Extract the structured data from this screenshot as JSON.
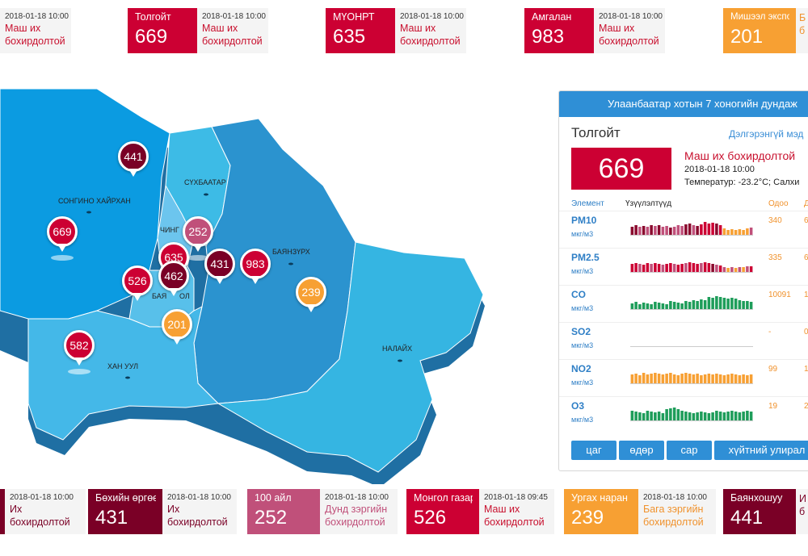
{
  "colors": {
    "red": "#cc0033",
    "dark": "#7a0026",
    "pink": "#c0507a",
    "orange": "#f7a033",
    "blue_header": "#2f8fd6"
  },
  "top_cards": [
    {
      "name": "",
      "value": "",
      "date": "2018-01-18 10:00",
      "level_line1": "Маш их",
      "level_line2": "бохирдолтой",
      "color": "red"
    },
    {
      "name": "Толгойт",
      "value": "669",
      "date": "2018-01-18 10:00",
      "level_line1": "Маш их",
      "level_line2": "бохирдолтой",
      "color": "red"
    },
    {
      "name": "МҮОНРТ",
      "value": "635",
      "date": "2018-01-18 10:00",
      "level_line1": "Маш их",
      "level_line2": "бохирдолтой",
      "color": "red"
    },
    {
      "name": "Амгалан",
      "value": "983",
      "date": "2018-01-18 10:00",
      "level_line1": "Маш их",
      "level_line2": "бохирдолтой",
      "color": "red"
    },
    {
      "name": "Мишээл экспо",
      "value": "201",
      "date": "",
      "level_line1": "Б",
      "level_line2": "б",
      "color": "orange"
    }
  ],
  "bottom_cards": [
    {
      "name": "",
      "value": "",
      "date": "2018-01-18 10:00",
      "level_line1": "Их",
      "level_line2": "бохирдолтой",
      "color": "dark"
    },
    {
      "name": "Бөхийн өргөө",
      "value": "431",
      "date": "2018-01-18 10:00",
      "level_line1": "Их",
      "level_line2": "бохирдолтой",
      "color": "dark"
    },
    {
      "name": "100 айл",
      "value": "252",
      "date": "2018-01-18 10:00",
      "level_line1": "Дунд зэргийн",
      "level_line2": "бохирдолтой",
      "color": "pink"
    },
    {
      "name": "Монгол газар",
      "value": "526",
      "date": "2018-01-18 09:45",
      "level_line1": "Маш их",
      "level_line2": "бохирдолтой",
      "color": "red"
    },
    {
      "name": "Ургах наран",
      "value": "239",
      "date": "2018-01-18 10:00",
      "level_line1": "Бага зэргийн",
      "level_line2": "бохирдолтой",
      "color": "orange"
    },
    {
      "name": "Баянхошуу",
      "value": "441",
      "date": "",
      "level_line1": "И",
      "level_line2": "б",
      "color": "dark"
    }
  ],
  "map": {
    "districts": [
      "СОНГИНО ХАЙРХАН",
      "СҮХБААТАР",
      "ЧИНГ",
      "БАЯНЗҮРХ",
      "БАЯ",
      "ОЛ",
      "НАЛАЙХ",
      "ХАН УУЛ"
    ],
    "markers": [
      {
        "value": "441",
        "color": "dark"
      },
      {
        "value": "669",
        "color": "red"
      },
      {
        "value": "252",
        "color": "pink"
      },
      {
        "value": "635",
        "color": "red"
      },
      {
        "value": "462",
        "color": "dark"
      },
      {
        "value": "526",
        "color": "red"
      },
      {
        "value": "431",
        "color": "dark"
      },
      {
        "value": "983",
        "color": "red"
      },
      {
        "value": "239",
        "color": "orange"
      },
      {
        "value": "201",
        "color": "orange"
      },
      {
        "value": "582",
        "color": "red"
      }
    ]
  },
  "panel": {
    "header": "Улаанбаатар хотын 7 хоногийн дундаж",
    "station": "Толгойт",
    "more_link": "Дэлгэрэнгүй мэд",
    "aqi": "669",
    "level": "Маш их бохирдолтой",
    "date": "2018-01-18 10:00",
    "weather": "Температур: -23.2°C; Салхи",
    "col_element": "Элемент",
    "col_trend": "Үзүүлэлтүүд",
    "col_now": "Одоо",
    "col_avg": "Д",
    "pollutants": [
      {
        "name": "PM10",
        "unit": "мкг/м3",
        "now": "340",
        "avg": "6",
        "color": "dark",
        "bars": [
          0.5,
          0.6,
          0.5,
          0.55,
          0.5,
          0.6,
          0.55,
          0.6,
          0.5,
          0.55,
          0.45,
          0.5,
          0.6,
          0.55,
          0.65,
          0.7,
          0.6,
          0.55,
          0.65,
          0.8,
          0.7,
          0.75,
          0.7,
          0.6,
          0.4,
          0.3,
          0.35,
          0.3,
          0.35,
          0.3,
          0.4,
          0.45
        ],
        "bar_colors": [
          "dark",
          "dark",
          "pink",
          "dark",
          "pink",
          "dark",
          "pink",
          "dark",
          "pink",
          "pink",
          "dark",
          "pink",
          "pink",
          "pink",
          "dark",
          "dark",
          "pink",
          "dark",
          "red",
          "red",
          "red",
          "red",
          "dark",
          "red",
          "orange",
          "orange",
          "orange",
          "orange",
          "orange",
          "orange",
          "orange",
          "pink"
        ]
      },
      {
        "name": "PM2.5",
        "unit": "мкг/м3",
        "now": "335",
        "avg": "6",
        "color": "red",
        "bars": [
          0.5,
          0.55,
          0.5,
          0.45,
          0.55,
          0.5,
          0.55,
          0.5,
          0.45,
          0.5,
          0.55,
          0.5,
          0.45,
          0.5,
          0.55,
          0.6,
          0.55,
          0.5,
          0.55,
          0.6,
          0.55,
          0.5,
          0.45,
          0.4,
          0.3,
          0.25,
          0.3,
          0.25,
          0.3,
          0.3,
          0.35,
          0.35
        ],
        "bar_colors": [
          "red",
          "red",
          "pink",
          "red",
          "red",
          "pink",
          "red",
          "red",
          "pink",
          "red",
          "red",
          "pink",
          "red",
          "red",
          "pink",
          "red",
          "red",
          "red",
          "pink",
          "red",
          "red",
          "dark",
          "pink",
          "red",
          "pink",
          "orange",
          "pink",
          "orange",
          "pink",
          "orange",
          "pink",
          "red"
        ]
      },
      {
        "name": "CO",
        "unit": "мкг/м3",
        "now": "10091",
        "avg": "1",
        "color": "green",
        "bars": [
          0.35,
          0.45,
          0.3,
          0.4,
          0.35,
          0.3,
          0.45,
          0.4,
          0.35,
          0.3,
          0.5,
          0.45,
          0.4,
          0.35,
          0.5,
          0.45,
          0.55,
          0.5,
          0.6,
          0.55,
          0.75,
          0.7,
          0.8,
          0.75,
          0.7,
          0.65,
          0.7,
          0.65,
          0.55,
          0.5,
          0.5,
          0.45
        ],
        "bar_colors": []
      },
      {
        "name": "SO2",
        "unit": "мкг/м3",
        "now": "-",
        "avg": "0",
        "color": "none",
        "bars": [],
        "bar_colors": []
      },
      {
        "name": "NO2",
        "unit": "мкг/м3",
        "now": "99",
        "avg": "1",
        "color": "orange",
        "bars": [
          0.55,
          0.6,
          0.5,
          0.65,
          0.55,
          0.6,
          0.65,
          0.6,
          0.55,
          0.6,
          0.65,
          0.55,
          0.5,
          0.6,
          0.65,
          0.6,
          0.55,
          0.6,
          0.5,
          0.55,
          0.6,
          0.55,
          0.6,
          0.55,
          0.5,
          0.55,
          0.6,
          0.55,
          0.5,
          0.55,
          0.5,
          0.55
        ],
        "bar_colors": []
      },
      {
        "name": "O3",
        "unit": "мкг/м3",
        "now": "19",
        "avg": "2",
        "color": "green",
        "bars": [
          0.6,
          0.55,
          0.5,
          0.45,
          0.6,
          0.55,
          0.5,
          0.55,
          0.45,
          0.7,
          0.75,
          0.8,
          0.7,
          0.6,
          0.55,
          0.5,
          0.45,
          0.5,
          0.55,
          0.5,
          0.45,
          0.5,
          0.6,
          0.55,
          0.5,
          0.55,
          0.6,
          0.55,
          0.5,
          0.55,
          0.6,
          0.55
        ],
        "bar_colors": []
      }
    ],
    "tabs": [
      "цаг",
      "өдөр",
      "сар",
      "хүйтний улирал"
    ]
  }
}
